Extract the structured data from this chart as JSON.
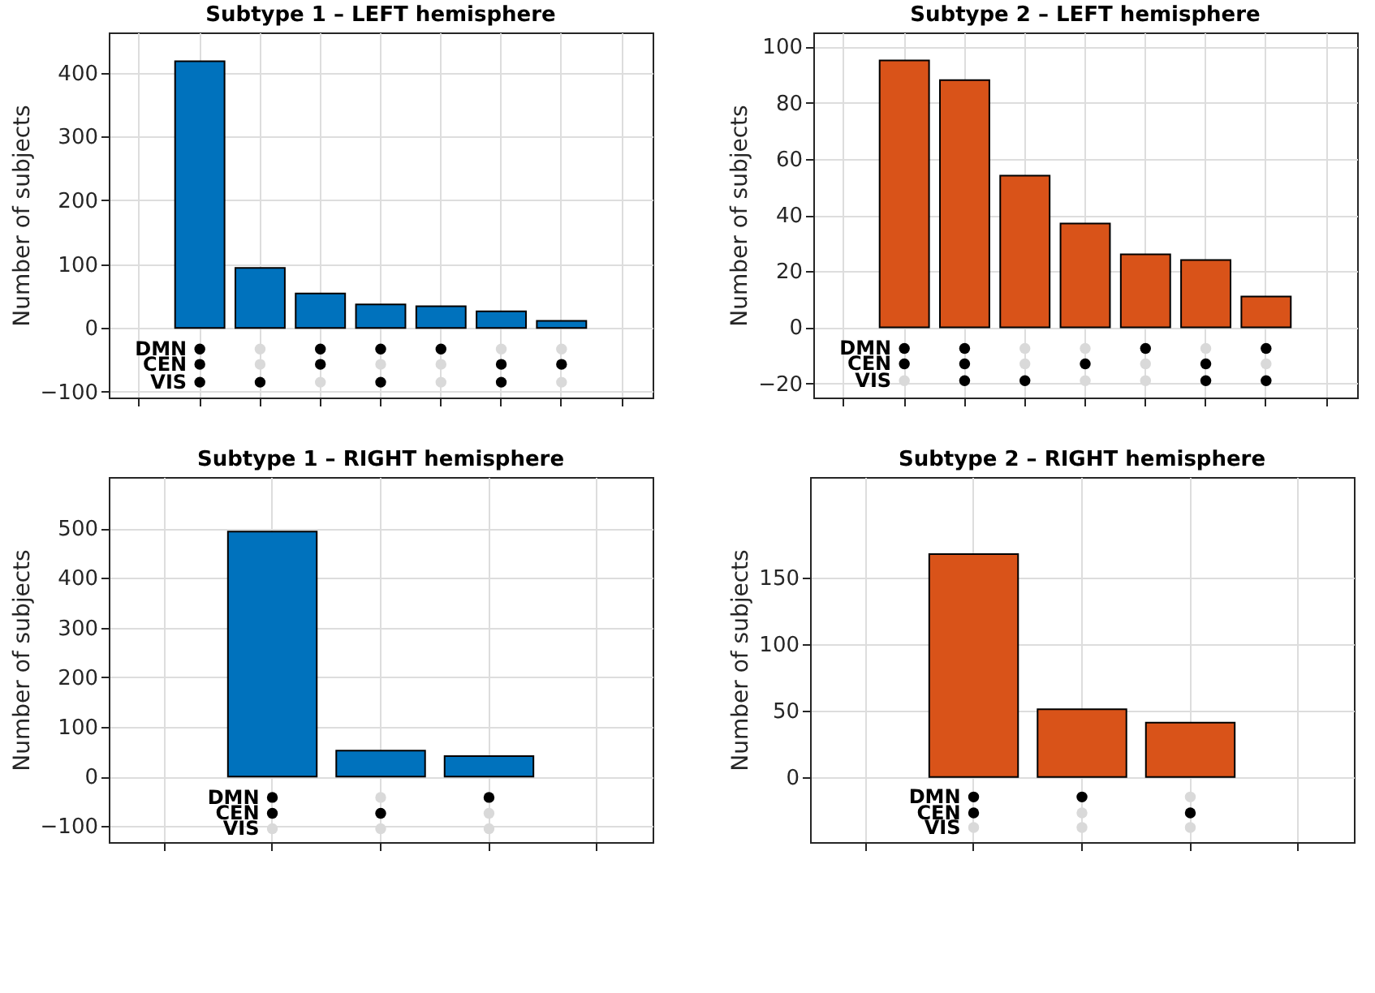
{
  "chart_data": [
    {
      "type": "bar",
      "title": "Subtype 1 – LEFT hemisphere",
      "ylabel": "Number of subjects",
      "categories": [
        null,
        null,
        null,
        null,
        null,
        null,
        null,
        null,
        null
      ],
      "ylim": [
        -109,
        463
      ],
      "yticks": [
        -100,
        0,
        100,
        200,
        300,
        400
      ],
      "grid": true,
      "tick_labels": "y",
      "legend": "left",
      "series": [
        {
          "type": "bar",
          "color": "#0072bd",
          "values": [
            null,
            418,
            94,
            54,
            37,
            34,
            26,
            11,
            null
          ]
        },
        {
          "type": "scatter",
          "name": "DMN",
          "values": [
            null,
            -33,
            -33,
            -33,
            -33,
            -33,
            -33,
            -33,
            null
          ],
          "colors": [
            null,
            "#000000",
            "#d9d9d9",
            "#000000",
            "#000000",
            "#000000",
            "#d9d9d9",
            "#d9d9d9",
            null
          ]
        },
        {
          "type": "scatter",
          "name": "CEN",
          "values": [
            null,
            -57,
            -57,
            -57,
            -57,
            -57,
            -57,
            -57,
            null
          ],
          "colors": [
            null,
            "#000000",
            "#d9d9d9",
            "#000000",
            "#d9d9d9",
            "#d9d9d9",
            "#000000",
            "#000000",
            null
          ]
        },
        {
          "type": "scatter",
          "name": "VIS",
          "values": [
            null,
            -85,
            -85,
            -85,
            -85,
            -85,
            -85,
            -85,
            null
          ],
          "colors": [
            null,
            "#000000",
            "#000000",
            "#d9d9d9",
            "#000000",
            "#d9d9d9",
            "#000000",
            "#d9d9d9",
            null
          ]
        }
      ]
    },
    {
      "type": "bar",
      "title": "Subtype 2 – LEFT hemisphere",
      "ylabel": "Number of subjects",
      "categories": [
        null,
        null,
        null,
        null,
        null,
        null,
        null,
        null,
        null
      ],
      "ylim": [
        -25,
        105
      ],
      "yticks": [
        -20,
        0,
        20,
        40,
        60,
        80,
        100
      ],
      "grid": true,
      "tick_labels": "y",
      "legend": "left",
      "series": [
        {
          "type": "bar",
          "color": "#d95319",
          "values": [
            null,
            95,
            88,
            54,
            37,
            26,
            24,
            11,
            null
          ]
        },
        {
          "type": "scatter",
          "name": "DMN",
          "values": [
            null,
            -7.5,
            -7.5,
            -7.5,
            -7.5,
            -7.5,
            -7.5,
            -7.5,
            null
          ],
          "colors": [
            null,
            "#000000",
            "#000000",
            "#d9d9d9",
            "#d9d9d9",
            "#000000",
            "#d9d9d9",
            "#000000",
            null
          ]
        },
        {
          "type": "scatter",
          "name": "CEN",
          "values": [
            null,
            -13,
            -13,
            -13,
            -13,
            -13,
            -13,
            -13,
            null
          ],
          "colors": [
            null,
            "#000000",
            "#000000",
            "#d9d9d9",
            "#000000",
            "#d9d9d9",
            "#000000",
            "#d9d9d9",
            null
          ]
        },
        {
          "type": "scatter",
          "name": "VIS",
          "values": [
            null,
            -19,
            -19,
            -19,
            -19,
            -19,
            -19,
            -19,
            null
          ],
          "colors": [
            null,
            "#d9d9d9",
            "#000000",
            "#000000",
            "#d9d9d9",
            "#d9d9d9",
            "#000000",
            "#000000",
            null
          ]
        }
      ]
    },
    {
      "type": "bar",
      "title": "Subtype 1 – RIGHT hemisphere",
      "ylabel": "Number of subjects",
      "categories": [
        null,
        null,
        null,
        null,
        null
      ],
      "ylim": [
        -132,
        603
      ],
      "yticks": [
        -100,
        0,
        100,
        200,
        300,
        400,
        500
      ],
      "grid": true,
      "tick_labels": "y",
      "legend": "left",
      "series": [
        {
          "type": "bar",
          "color": "#0072bd",
          "values": [
            null,
            493,
            52,
            41,
            null
          ]
        },
        {
          "type": "scatter",
          "name": "DMN",
          "values": [
            null,
            -42,
            -42,
            -42,
            null
          ],
          "colors": [
            null,
            "#000000",
            "#d9d9d9",
            "#000000",
            null
          ]
        },
        {
          "type": "scatter",
          "name": "CEN",
          "values": [
            null,
            -74,
            -74,
            -74,
            null
          ],
          "colors": [
            null,
            "#000000",
            "#000000",
            "#d9d9d9",
            null
          ]
        },
        {
          "type": "scatter",
          "name": "VIS",
          "values": [
            null,
            -105,
            -105,
            -105,
            null
          ],
          "colors": [
            null,
            "#d9d9d9",
            "#d9d9d9",
            "#d9d9d9",
            null
          ]
        }
      ]
    },
    {
      "type": "bar",
      "title": "Subtype 2 – RIGHT hemisphere",
      "ylabel": "Number of subjects",
      "categories": [
        null,
        null,
        null,
        null,
        null
      ],
      "ylim": [
        -49,
        226
      ],
      "yticks": [
        0,
        50,
        100,
        150
      ],
      "grid": true,
      "tick_labels": "y",
      "legend": "left",
      "series": [
        {
          "type": "bar",
          "color": "#d95319",
          "values": [
            null,
            168,
            51,
            41,
            null
          ]
        },
        {
          "type": "scatter",
          "name": "DMN",
          "values": [
            null,
            -15,
            -15,
            -15,
            null
          ],
          "colors": [
            null,
            "#000000",
            "#000000",
            "#d9d9d9",
            null
          ]
        },
        {
          "type": "scatter",
          "name": "CEN",
          "values": [
            null,
            -27,
            -27,
            -27,
            null
          ],
          "colors": [
            null,
            "#000000",
            "#d9d9d9",
            "#000000",
            null
          ]
        },
        {
          "type": "scatter",
          "name": "VIS",
          "values": [
            null,
            -38,
            -38,
            -38,
            null
          ],
          "colors": [
            null,
            "#d9d9d9",
            "#d9d9d9",
            "#d9d9d9",
            null
          ]
        }
      ]
    }
  ]
}
